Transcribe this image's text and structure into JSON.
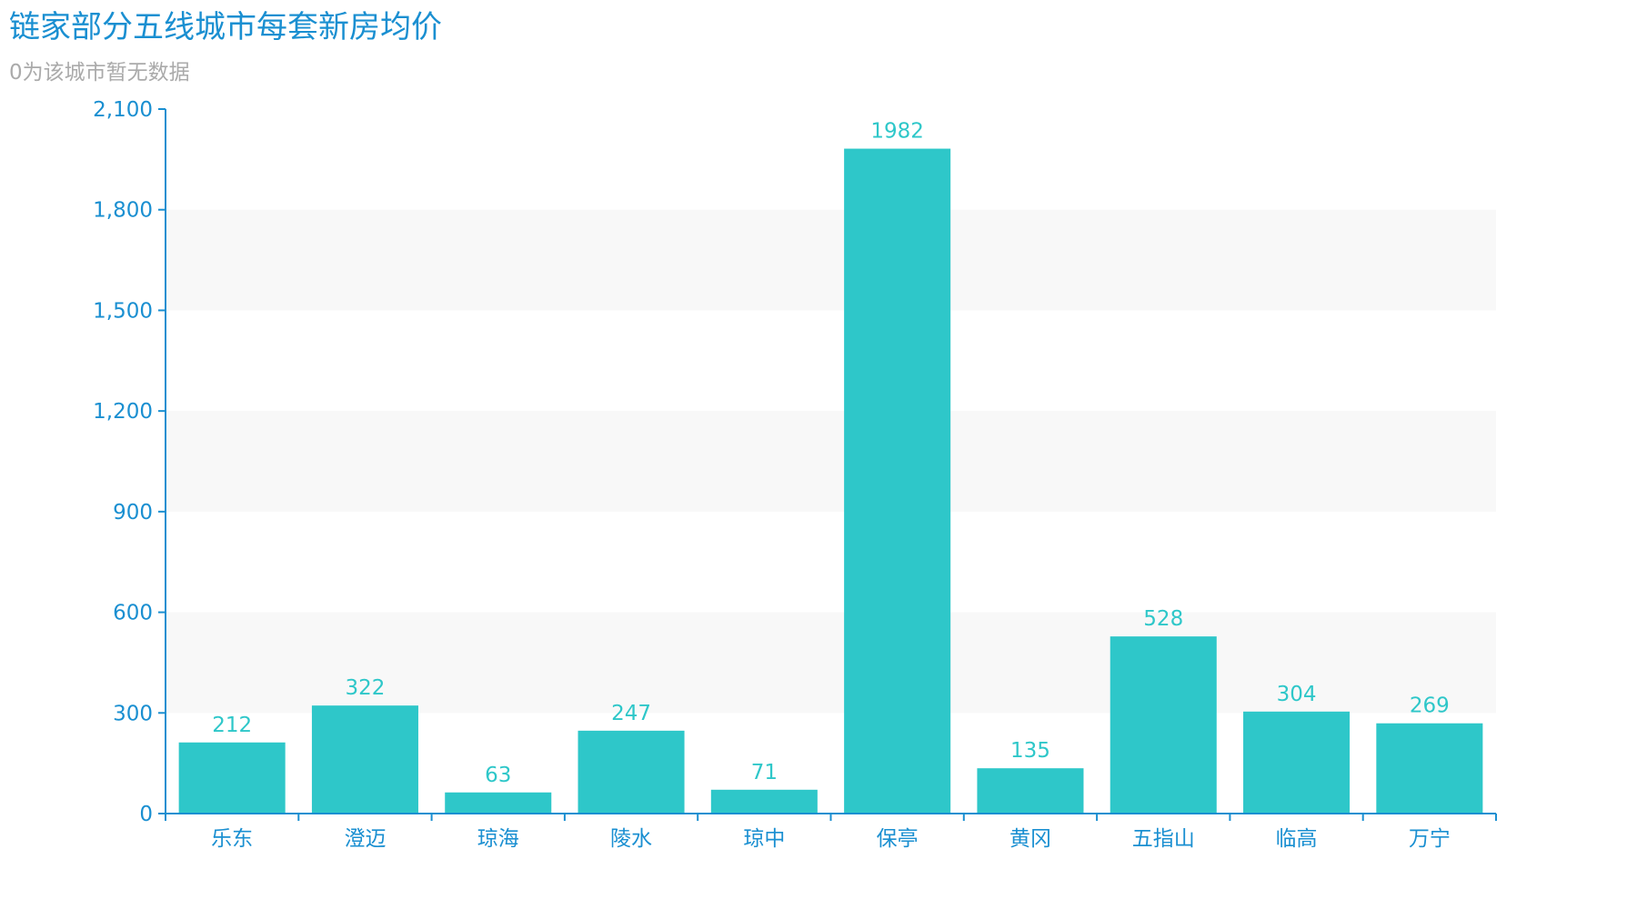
{
  "chart_data": {
    "type": "bar",
    "title": "链家部分五线城市每套新房均价",
    "subtitle": "0为该城市暂无数据",
    "categories": [
      "乐东",
      "澄迈",
      "琼海",
      "陵水",
      "琼中",
      "保亭",
      "黄冈",
      "五指山",
      "临高",
      "万宁"
    ],
    "values": [
      212,
      322,
      63,
      247,
      71,
      1982,
      135,
      528,
      304,
      269
    ],
    "ylim": [
      0,
      2100
    ],
    "yticks": [
      0,
      300,
      600,
      900,
      1200,
      1500,
      1800,
      2100
    ],
    "ytick_labels": [
      "0",
      "300",
      "600",
      "900",
      "1,200",
      "1,500",
      "1,800",
      "2,100"
    ],
    "xlabel": "",
    "ylabel": "",
    "grid": "alternating-bands",
    "colors": {
      "bar": "#2ec7c9",
      "axis": "#1a8fd1",
      "title": "#1a8fd1",
      "subtitle": "#aaaaaa",
      "band": "#f8f8f8"
    }
  }
}
